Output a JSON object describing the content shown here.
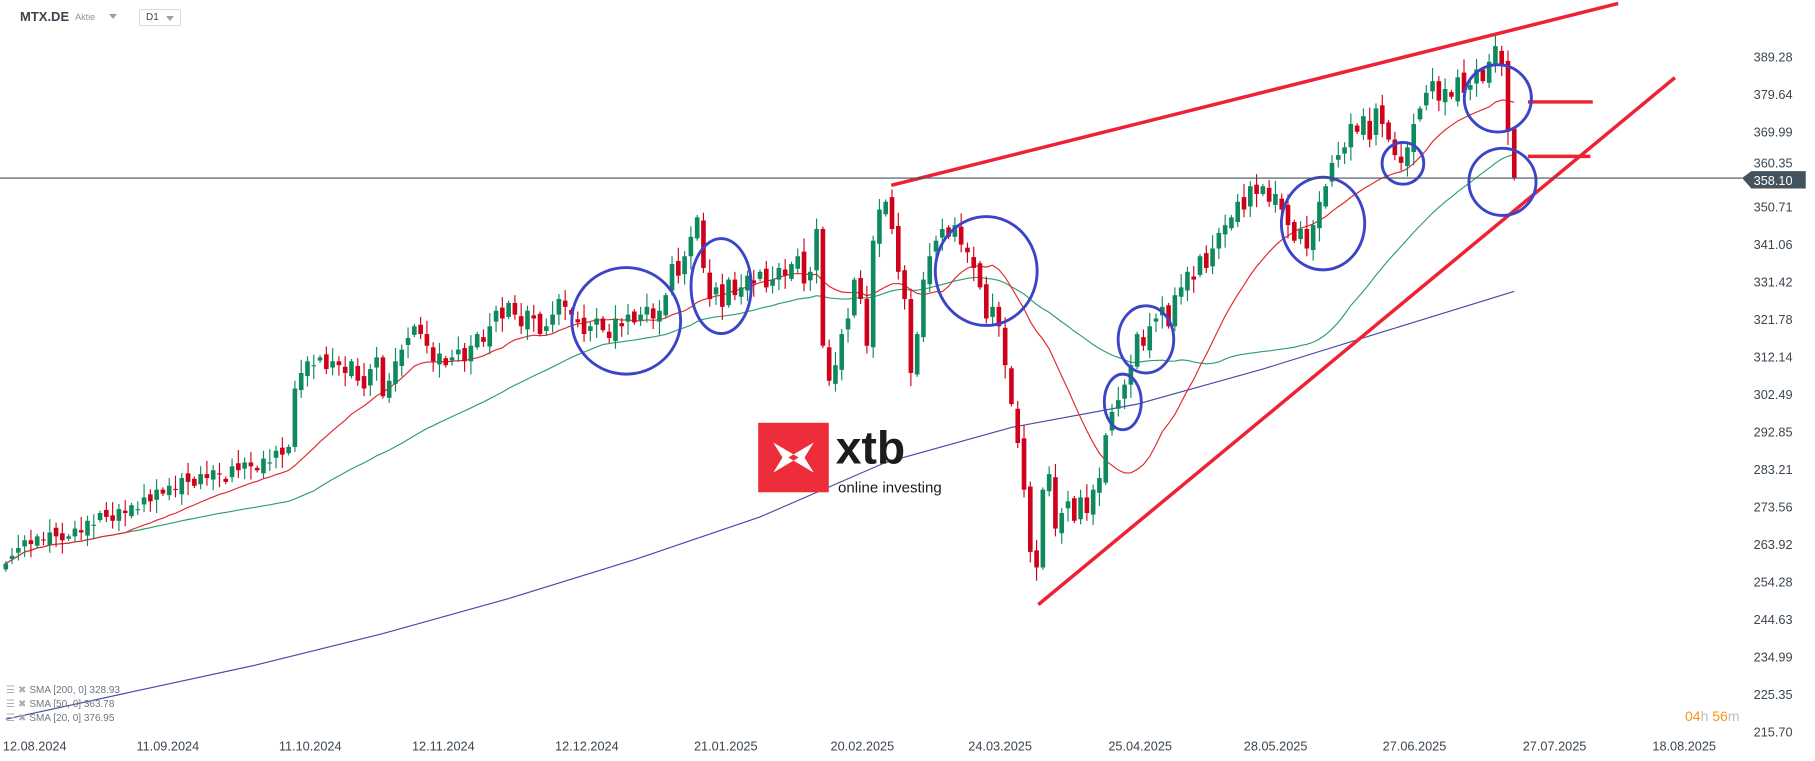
{
  "header": {
    "symbol": "MTX.DE",
    "type": "Aktie",
    "timeframe": "D1"
  },
  "legend": [
    {
      "label": "SMA [200, 0] 328.93",
      "icon": "menu-icon",
      "close_icon": "close-icon"
    },
    {
      "label": "SMA [50, 0] 363.78",
      "icon": "menu-icon",
      "close_icon": "close-icon"
    },
    {
      "label": "SMA [20, 0] 376.95",
      "icon": "menu-icon",
      "close_icon": "close-icon"
    }
  ],
  "timer": {
    "hours": "04",
    "h": "h",
    "minutes": "56",
    "m": "m"
  },
  "logo": {
    "brand": "xtb",
    "tagline": "online investing"
  },
  "colors": {
    "up": "#0f8a5f",
    "down": "#d0021b",
    "sma20": "#e0282e",
    "sma50": "#2e9e6e",
    "sma200": "#4a4aa8",
    "annotation_circle": "#3c44c8",
    "trendline": "#ee2233",
    "price_line": "#44525e",
    "timer": "#f7931e"
  },
  "chart_data": {
    "type": "candlestick",
    "title": "",
    "y_ticks": [
      "389.28",
      "379.64",
      "369.99",
      "360.35",
      "350.71",
      "341.06",
      "331.42",
      "321.78",
      "312.14",
      "302.49",
      "292.85",
      "283.21",
      "273.56",
      "263.92",
      "254.28",
      "244.63",
      "234.99",
      "225.35",
      "215.70"
    ],
    "ylim": [
      215.7,
      389.28
    ],
    "x_ticks": [
      "12.08.2024",
      "11.09.2024",
      "11.10.2024",
      "12.11.2024",
      "12.12.2024",
      "21.01.2025",
      "20.02.2025",
      "24.03.2025",
      "25.04.2025",
      "28.05.2025",
      "27.06.2025",
      "27.07.2025",
      "18.08.2025"
    ],
    "current_price": "358.10",
    "closes": [
      259,
      261,
      263,
      265,
      264,
      266,
      265,
      267,
      266,
      265,
      266,
      268,
      267,
      270,
      269,
      272,
      271,
      270,
      273,
      272,
      274,
      273,
      276,
      275,
      278,
      277,
      279,
      278,
      281,
      280,
      279,
      282,
      281,
      283,
      282,
      280,
      284,
      283,
      285,
      284,
      283,
      286,
      285,
      288,
      287,
      289,
      304,
      308,
      311,
      310,
      312,
      309,
      311,
      310,
      308,
      311,
      306,
      304,
      309,
      312,
      302,
      306,
      311,
      314,
      317,
      320,
      318,
      315,
      311,
      313,
      310,
      312,
      314,
      311,
      315,
      318,
      316,
      320,
      324,
      322,
      326,
      323,
      320,
      324,
      322,
      318,
      320,
      323,
      327,
      325,
      323,
      321,
      318,
      320,
      322,
      319,
      317,
      322,
      320,
      323,
      321,
      323,
      325,
      322,
      324,
      328,
      336,
      333,
      338,
      343,
      348,
      335,
      327,
      330,
      325,
      332,
      328,
      330,
      333,
      331,
      334,
      330,
      332,
      335,
      333,
      336,
      338,
      331,
      334,
      345,
      315,
      306,
      310,
      318,
      322,
      332,
      327,
      315,
      342,
      350,
      352,
      345,
      334,
      327,
      308,
      318,
      332,
      338,
      342,
      345,
      343,
      346,
      341,
      339,
      335,
      330,
      322,
      325,
      320,
      310,
      300,
      290,
      278,
      262,
      258,
      278,
      282,
      268,
      272,
      275,
      270,
      276,
      272,
      278,
      281,
      292,
      298,
      301,
      305,
      310,
      318,
      315,
      320,
      322,
      325,
      320,
      328,
      330,
      334,
      332,
      338,
      335,
      340,
      344,
      346,
      348,
      352,
      350,
      356,
      354,
      356,
      352,
      354,
      350,
      346,
      342,
      345,
      340,
      346,
      352,
      356,
      362,
      364,
      366,
      372,
      370,
      374,
      368,
      376,
      372,
      368,
      364,
      362,
      366,
      372,
      376,
      380,
      383,
      378,
      381,
      379,
      384,
      380,
      382,
      386,
      383,
      388,
      392,
      387,
      370,
      358.1
    ],
    "series": [
      {
        "name": "SMA [20, 0]",
        "period": 20
      },
      {
        "name": "SMA [50, 0]",
        "period": 50
      },
      {
        "name": "SMA [200, 0]",
        "period": 200,
        "sampled_every_20_bars": [
          219,
          226,
          233,
          241,
          250,
          260,
          271,
          285,
          294,
          300,
          309,
          319,
          329
        ]
      }
    ],
    "grid": false
  }
}
